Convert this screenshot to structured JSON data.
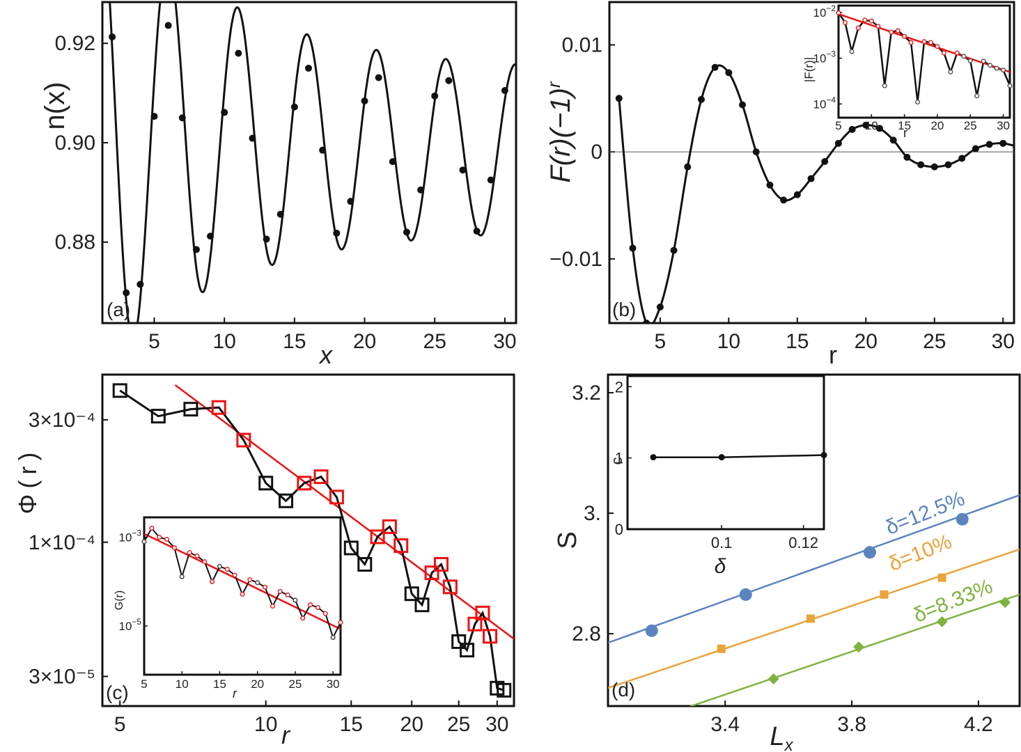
{
  "chart_data": [
    {
      "id": "a",
      "type": "line",
      "panel_label": "(a)",
      "xlabel": "x",
      "ylabel": "n(x)",
      "xlim": [
        1.3,
        30.8
      ],
      "ylim": [
        0.8637,
        0.9283
      ],
      "xticks": [
        5,
        10,
        15,
        20,
        25,
        30
      ],
      "yticks": [
        0.88,
        0.9,
        0.92
      ],
      "ytick_labels": [
        "0.88",
        "0.90",
        "0.92"
      ],
      "series": [
        {
          "name": "data points",
          "x": [
            2,
            3,
            4,
            5,
            6,
            7,
            8,
            9,
            10,
            11,
            12,
            13,
            14,
            15,
            16,
            17,
            18,
            19,
            20,
            21,
            22,
            23,
            24,
            25,
            26,
            27,
            28,
            29,
            30
          ],
          "y": [
            0.9213,
            0.8698,
            0.8715,
            0.9053,
            0.9236,
            0.905,
            0.8785,
            0.8812,
            0.9061,
            0.918,
            0.9009,
            0.8806,
            0.8856,
            0.9072,
            0.915,
            0.8985,
            0.8818,
            0.8882,
            0.9084,
            0.9131,
            0.8962,
            0.882,
            0.8905,
            0.9094,
            0.9125,
            0.8945,
            0.8822,
            0.8925,
            0.9105
          ]
        }
      ]
    },
    {
      "id": "b",
      "type": "line",
      "panel_label": "(b)",
      "xlabel": "r",
      "ylabel": "F(r)(−1)^r",
      "xlim": [
        1.3,
        30.8
      ],
      "ylim": [
        -0.016,
        0.014
      ],
      "xticks": [
        5,
        10,
        15,
        20,
        25,
        30
      ],
      "yticks": [
        -0.01,
        0,
        0.01
      ],
      "ytick_labels": [
        "−0.01",
        "0",
        "0.01"
      ],
      "zero_line": true,
      "series": [
        {
          "name": "F(r)(-1)^r",
          "x": [
            2,
            3,
            4,
            5,
            6,
            7,
            8,
            9,
            10,
            11,
            12,
            13,
            14,
            15,
            16,
            17,
            18,
            19,
            20,
            21,
            22,
            23,
            24,
            25,
            26,
            27,
            28,
            29,
            30,
            31
          ],
          "y": [
            0.005,
            -0.009,
            -0.016,
            -0.0145,
            -0.0092,
            -0.0014,
            0.0049,
            0.0079,
            0.0074,
            0.0044,
            0.0,
            -0.0031,
            -0.0045,
            -0.004,
            -0.0025,
            -0.0009,
            0.0008,
            0.0021,
            0.0025,
            0.0022,
            0.0011,
            -0.0005,
            -0.0012,
            -0.0014,
            -0.0012,
            -0.0006,
            0.0003,
            0.0007,
            0.0008,
            0.0005
          ]
        }
      ],
      "inset": {
        "type": "line",
        "xlabel": "r",
        "ylabel": "|F(r)|",
        "scale_y": "log",
        "xlim": [
          5,
          31
        ],
        "ylim_exp": [
          -4.3,
          -1.85
        ],
        "xticks": [
          5,
          10,
          15,
          20,
          25,
          30
        ],
        "yticks_exp": [
          -4,
          -3,
          -2
        ],
        "ytick_base": "10",
        "series": [
          {
            "name": "|F(r)|",
            "x": [
              5,
              6,
              7,
              8,
              9,
              10,
              11,
              12,
              13,
              14,
              15,
              16,
              17,
              18,
              19,
              20,
              21,
              22,
              23,
              24,
              25,
              26,
              27,
              28,
              29,
              30,
              31
            ],
            "y": [
              0.0098,
              0.006,
              0.0014,
              0.0046,
              0.0068,
              0.0065,
              0.005,
              0.00025,
              0.0037,
              0.004,
              0.003,
              0.0022,
              0.00011,
              0.0023,
              0.0022,
              0.0018,
              0.0013,
              0.0005,
              0.0013,
              0.0011,
              0.00088,
              0.00015,
              0.00086,
              0.0007,
              0.0006,
              0.00055,
              0.00025
            ]
          },
          {
            "name": "fit",
            "x": [
              5,
              31
            ],
            "y": [
              0.0092,
              0.0005
            ]
          }
        ]
      }
    },
    {
      "id": "c",
      "type": "line",
      "panel_label": "(c)",
      "xlabel": "r",
      "ylabel": "Φ(r)",
      "scale_x": "log",
      "scale_y": "log",
      "xlim": [
        4.6,
        32.5
      ],
      "ylim": [
        2.3e-05,
        0.00045
      ],
      "xticks": [
        5,
        10,
        15,
        20,
        25,
        30
      ],
      "yticks": [
        3e-05,
        0.0001,
        0.0003
      ],
      "ytick_labels": [
        "3×10⁻⁵",
        "1×10⁻⁴",
        "3×10⁻⁴"
      ],
      "series": [
        {
          "name": "Φ(r)",
          "x": [
            5,
            6,
            7,
            8,
            9,
            10,
            11,
            12,
            13,
            14,
            15,
            16,
            17,
            18,
            19,
            20,
            21,
            22,
            23,
            24,
            25,
            26,
            27,
            28,
            29,
            30,
            31
          ],
          "y": [
            0.00039,
            0.00031,
            0.00033,
            0.000335,
            0.00025,
            0.00017,
            0.000145,
            0.00017,
            0.00018,
            0.00015,
            9.5e-05,
            8.2e-05,
            0.000105,
            0.000115,
            9.7e-05,
            6.3e-05,
            5.7e-05,
            7.6e-05,
            8.2e-05,
            6.7e-05,
            4.1e-05,
            3.8e-05,
            4.8e-05,
            5.3e-05,
            4.3e-05,
            2.7e-05,
            2.65e-05
          ],
          "highlight_red": [
            8,
            9,
            12,
            13,
            14,
            17,
            18,
            19,
            22,
            23,
            24,
            27,
            28,
            29
          ]
        },
        {
          "name": "fit",
          "x": [
            6.5,
            32.5
          ],
          "y": [
            0.00041,
            4.2e-05
          ]
        }
      ],
      "inset": {
        "type": "line",
        "xlabel": "r",
        "ylabel": "G(r)",
        "scale_y": "log",
        "xlim": [
          5,
          31
        ],
        "ylim_exp": [
          -6.1,
          -2.55
        ],
        "xticks": [
          5,
          10,
          15,
          20,
          25,
          30
        ],
        "yticks_exp": [
          -5,
          -3
        ],
        "ytick_base": "10",
        "series": [
          {
            "name": "G(r)",
            "x": [
              5,
              6,
              7,
              8,
              9,
              10,
              11,
              12,
              13,
              14,
              15,
              16,
              17,
              18,
              19,
              20,
              21,
              22,
              23,
              24,
              25,
              26,
              27,
              28,
              29,
              30,
              31
            ],
            "y": [
              0.0008,
              0.0016,
              0.001,
              0.0009,
              0.00058,
              0.00013,
              0.00045,
              0.00038,
              0.00028,
              0.0001,
              0.00022,
              0.00019,
              0.00014,
              5.2e-05,
              0.00011,
              9.5e-05,
              7.5e-05,
              2.8e-05,
              6e-05,
              5e-05,
              3.8e-05,
              1.5e-05,
              3e-05,
              2.6e-05,
              1.9e-05,
              5.5e-06,
              1.2e-05
            ]
          },
          {
            "name": "fit",
            "x": [
              5,
              31
            ],
            "y": [
              0.0012,
              8.5e-06
            ]
          }
        ]
      }
    },
    {
      "id": "d",
      "type": "scatter",
      "panel_label": "(d)",
      "xlabel": "L_x",
      "ylabel": "S",
      "xlim": [
        3.03,
        4.33
      ],
      "ylim": [
        2.68,
        3.23
      ],
      "xticks": [
        3.4,
        3.8,
        4.2
      ],
      "yticks": [
        2.8,
        3.0,
        3.2
      ],
      "ytick_labels": [
        "2.8",
        "3.",
        "3.2"
      ],
      "series": [
        {
          "name": "δ=12.5%",
          "color": "#5b84bf",
          "marker": "circle",
          "x": [
            3.168,
            3.465,
            3.857,
            4.149
          ],
          "y": [
            2.805,
            2.865,
            2.935,
            2.99
          ],
          "fit": [
            [
              3.03,
              2.785
            ],
            [
              4.33,
              3.03
            ]
          ]
        },
        {
          "name": "δ=10%",
          "color": "#e9a33a",
          "marker": "square",
          "x": [
            3.388,
            3.67,
            3.902,
            4.085
          ],
          "y": [
            2.775,
            2.825,
            2.865,
            2.893
          ],
          "fit": [
            [
              3.03,
              2.71
            ],
            [
              4.33,
              2.94
            ]
          ]
        },
        {
          "name": "δ=8.33%",
          "color": "#80b23e",
          "marker": "diamond",
          "x": [
            3.553,
            3.822,
            4.085,
            4.284
          ],
          "y": [
            2.725,
            2.778,
            2.82,
            2.852
          ],
          "fit": [
            [
              3.03,
              2.633
            ],
            [
              4.33,
              2.865
            ]
          ]
        }
      ],
      "inset": {
        "type": "line",
        "xlabel": "δ",
        "ylabel": "c",
        "xlim": [
          0.077,
          0.125
        ],
        "ylim": [
          0,
          2.15
        ],
        "xticks": [
          0.1,
          0.12
        ],
        "xtick_labels": [
          "0.1",
          "0.12"
        ],
        "yticks": [
          0,
          1,
          2
        ],
        "series": [
          {
            "name": "c",
            "x": [
              0.0833,
              0.1,
              0.125
            ],
            "y": [
              1.01,
              1.01,
              1.04
            ]
          }
        ]
      }
    }
  ]
}
